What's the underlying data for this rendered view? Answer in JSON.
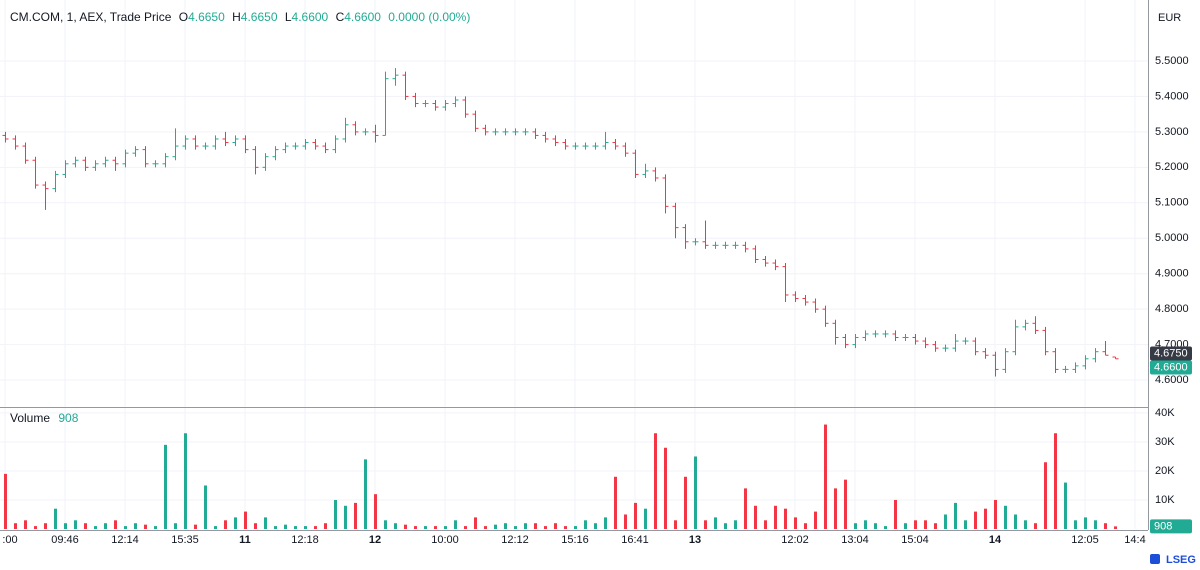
{
  "chart_data": {
    "type": "ohlc",
    "header": {
      "title": "CM.COM, 1, AEX, Trade Price",
      "open_label": "O",
      "open": "4.6650",
      "high_label": "H",
      "high": "4.6650",
      "low_label": "L",
      "low": "4.6600",
      "close_label": "C",
      "close": "4.6600",
      "change": "0.0000 (0.00%)"
    },
    "currency": "EUR",
    "volume_title": "Volume",
    "brand": "LSEG",
    "up_color": "#22ab94",
    "down_color": "#f23645",
    "grid": true,
    "categories": [
      ":00",
      null,
      null,
      null,
      null,
      null,
      "09:46",
      null,
      null,
      null,
      null,
      null,
      "12:14",
      null,
      null,
      null,
      null,
      null,
      "15:35",
      null,
      null,
      null,
      null,
      null,
      "11",
      null,
      null,
      null,
      null,
      null,
      "12:18",
      null,
      null,
      null,
      null,
      null,
      null,
      "12",
      null,
      null,
      null,
      null,
      null,
      null,
      "10:00",
      null,
      null,
      null,
      null,
      null,
      null,
      "12:12",
      null,
      null,
      null,
      null,
      null,
      "15:16",
      null,
      null,
      null,
      null,
      null,
      "16:41",
      null,
      null,
      null,
      null,
      null,
      "13",
      null,
      null,
      null,
      null,
      null,
      null,
      null,
      null,
      null,
      "12:02",
      null,
      null,
      null,
      null,
      null,
      "13:04",
      null,
      null,
      null,
      null,
      null,
      "15:04",
      null,
      null,
      null,
      null,
      null,
      null,
      null,
      "14",
      null,
      null,
      null,
      null,
      null,
      null,
      null,
      null,
      "12:05",
      null,
      null,
      null,
      null,
      "14:4"
    ],
    "open": [
      5.29,
      5.28,
      5.26,
      5.22,
      5.15,
      5.14,
      5.18,
      5.21,
      5.22,
      5.2,
      5.21,
      5.22,
      5.21,
      5.24,
      5.25,
      5.21,
      5.21,
      5.23,
      5.26,
      5.28,
      5.26,
      5.26,
      5.28,
      5.27,
      5.28,
      5.25,
      5.2,
      5.23,
      5.25,
      5.26,
      5.26,
      5.27,
      5.26,
      5.25,
      5.28,
      5.32,
      5.3,
      5.3,
      5.29,
      5.45,
      5.46,
      5.4,
      5.38,
      5.38,
      5.37,
      5.38,
      5.39,
      5.35,
      5.31,
      5.3,
      5.3,
      5.3,
      5.3,
      5.3,
      5.29,
      5.28,
      5.27,
      5.26,
      5.26,
      5.26,
      5.26,
      5.27,
      5.26,
      5.24,
      5.18,
      5.19,
      5.17,
      5.09,
      5.03,
      4.99,
      4.99,
      4.98,
      4.98,
      4.98,
      4.98,
      4.97,
      4.94,
      4.93,
      4.92,
      4.84,
      4.83,
      4.82,
      4.8,
      4.76,
      4.72,
      4.7,
      4.72,
      4.73,
      4.73,
      4.73,
      4.72,
      4.72,
      4.71,
      4.7,
      4.69,
      4.69,
      4.71,
      4.71,
      4.68,
      4.67,
      4.63,
      4.68,
      4.75,
      4.76,
      4.74,
      4.68,
      4.63,
      4.63,
      4.64,
      4.66,
      4.68,
      4.665,
      null,
      null
    ],
    "high": [
      5.3,
      5.29,
      5.27,
      5.23,
      5.16,
      5.19,
      5.22,
      5.23,
      5.23,
      5.22,
      5.23,
      5.23,
      5.25,
      5.26,
      5.26,
      5.22,
      5.24,
      5.31,
      5.29,
      5.29,
      5.27,
      5.29,
      5.3,
      5.29,
      5.29,
      5.26,
      5.24,
      5.26,
      5.27,
      5.27,
      5.28,
      5.28,
      5.27,
      5.29,
      5.34,
      5.33,
      5.31,
      5.32,
      5.47,
      5.48,
      5.47,
      5.41,
      5.39,
      5.39,
      5.39,
      5.4,
      5.4,
      5.36,
      5.32,
      5.31,
      5.31,
      5.31,
      5.31,
      5.31,
      5.3,
      5.29,
      5.28,
      5.27,
      5.27,
      5.27,
      5.3,
      5.28,
      5.27,
      5.25,
      5.21,
      5.2,
      5.18,
      5.1,
      5.04,
      5.0,
      5.05,
      4.99,
      4.99,
      4.99,
      4.99,
      4.98,
      4.95,
      4.94,
      4.93,
      4.85,
      4.84,
      4.83,
      4.81,
      4.77,
      4.73,
      4.73,
      4.74,
      4.74,
      4.74,
      4.74,
      4.73,
      4.73,
      4.72,
      4.71,
      4.7,
      4.73,
      4.72,
      4.72,
      4.69,
      4.68,
      4.69,
      4.77,
      4.77,
      4.78,
      4.75,
      4.69,
      4.64,
      4.65,
      4.67,
      4.69,
      4.71,
      4.665,
      null,
      null
    ],
    "low": [
      5.27,
      5.25,
      5.21,
      5.14,
      5.08,
      5.13,
      5.17,
      5.2,
      5.19,
      5.19,
      5.2,
      5.19,
      5.2,
      5.23,
      5.2,
      5.2,
      5.2,
      5.22,
      5.25,
      5.25,
      5.25,
      5.25,
      5.26,
      5.26,
      5.24,
      5.18,
      5.19,
      5.22,
      5.24,
      5.25,
      5.25,
      5.25,
      5.24,
      5.24,
      5.27,
      5.29,
      5.29,
      5.27,
      5.29,
      5.43,
      5.39,
      5.37,
      5.37,
      5.36,
      5.36,
      5.37,
      5.34,
      5.3,
      5.29,
      5.29,
      5.29,
      5.29,
      5.29,
      5.28,
      5.27,
      5.26,
      5.25,
      5.25,
      5.25,
      5.25,
      5.25,
      5.25,
      5.23,
      5.17,
      5.17,
      5.16,
      5.07,
      5.0,
      4.97,
      4.98,
      4.97,
      4.97,
      4.97,
      4.97,
      4.96,
      4.93,
      4.92,
      4.91,
      4.82,
      4.82,
      4.81,
      4.79,
      4.75,
      4.7,
      4.69,
      4.69,
      4.71,
      4.72,
      4.72,
      4.71,
      4.71,
      4.7,
      4.69,
      4.68,
      4.68,
      4.68,
      4.7,
      4.67,
      4.66,
      4.61,
      4.62,
      4.67,
      4.74,
      4.73,
      4.67,
      4.62,
      4.62,
      4.62,
      4.63,
      4.65,
      4.67,
      4.66,
      null,
      null
    ],
    "close": [
      5.28,
      5.26,
      5.22,
      5.15,
      5.14,
      5.18,
      5.21,
      5.22,
      5.2,
      5.21,
      5.22,
      5.21,
      5.24,
      5.25,
      5.21,
      5.21,
      5.23,
      5.26,
      5.28,
      5.26,
      5.26,
      5.28,
      5.27,
      5.28,
      5.25,
      5.2,
      5.23,
      5.25,
      5.26,
      5.26,
      5.27,
      5.26,
      5.25,
      5.28,
      5.32,
      5.3,
      5.3,
      5.29,
      5.45,
      5.46,
      5.4,
      5.38,
      5.38,
      5.37,
      5.38,
      5.39,
      5.35,
      5.31,
      5.3,
      5.3,
      5.3,
      5.3,
      5.3,
      5.29,
      5.28,
      5.27,
      5.26,
      5.26,
      5.26,
      5.26,
      5.27,
      5.26,
      5.24,
      5.18,
      5.19,
      5.17,
      5.09,
      5.03,
      4.99,
      4.99,
      4.98,
      4.98,
      4.98,
      4.98,
      4.97,
      4.94,
      4.93,
      4.92,
      4.84,
      4.83,
      4.82,
      4.8,
      4.76,
      4.72,
      4.7,
      4.72,
      4.73,
      4.73,
      4.73,
      4.72,
      4.72,
      4.71,
      4.7,
      4.69,
      4.69,
      4.71,
      4.71,
      4.68,
      4.67,
      4.63,
      4.68,
      4.75,
      4.76,
      4.74,
      4.68,
      4.63,
      4.63,
      4.64,
      4.66,
      4.68,
      4.67,
      4.66,
      null,
      null
    ],
    "volume": [
      19000,
      2000,
      3000,
      1000,
      2000,
      7000,
      2000,
      3000,
      2000,
      1000,
      2000,
      3000,
      1000,
      2000,
      1500,
      1000,
      29000,
      2000,
      33000,
      1500,
      15000,
      1000,
      3000,
      4000,
      6000,
      2000,
      4000,
      1000,
      1500,
      1000,
      1000,
      1000,
      2000,
      10000,
      8000,
      9000,
      24000,
      12000,
      3000,
      2000,
      1500,
      1000,
      1000,
      1000,
      1000,
      3000,
      1000,
      4000,
      1000,
      1500,
      2000,
      1000,
      2000,
      2000,
      1000,
      2000,
      1000,
      1000,
      3000,
      2000,
      4000,
      18000,
      5000,
      9000,
      7000,
      33000,
      28000,
      3000,
      18000,
      25000,
      3000,
      4000,
      2000,
      3000,
      14000,
      8000,
      3000,
      8000,
      7000,
      4000,
      2000,
      6000,
      36000,
      14000,
      17000,
      2000,
      3000,
      2000,
      1000,
      10000,
      2000,
      3000,
      3000,
      2000,
      5000,
      9000,
      3000,
      6000,
      7000,
      10000,
      8000,
      5000,
      3000,
      2000,
      23000,
      33000,
      16000,
      3000,
      4000,
      3000,
      2000,
      908,
      null,
      null
    ],
    "ylim": [
      4.524,
      5.672
    ],
    "yticks": [
      {
        "value": 4.6,
        "label": "4.6000"
      },
      {
        "value": 4.7,
        "label": "4.7000"
      },
      {
        "value": 4.8,
        "label": "4.8000"
      },
      {
        "value": 4.9,
        "label": "4.9000"
      },
      {
        "value": 5.0,
        "label": "5.0000"
      },
      {
        "value": 5.1,
        "label": "5.1000"
      },
      {
        "value": 5.2,
        "label": "5.2000"
      },
      {
        "value": 5.3,
        "label": "5.3000"
      },
      {
        "value": 5.4,
        "label": "5.4000"
      },
      {
        "value": 5.5,
        "label": "5.5000"
      }
    ],
    "y2lim": [
      0,
      41700
    ],
    "y2ticks": [
      {
        "value": 10000,
        "label": "10K"
      },
      {
        "value": 20000,
        "label": "20K"
      },
      {
        "value": 30000,
        "label": "30K"
      },
      {
        "value": 40000,
        "label": "40K"
      }
    ],
    "price_tags": [
      {
        "value": 4.675,
        "label": "4.6750",
        "color": "#363a45"
      },
      {
        "value": 4.66,
        "label": "4.6600",
        "color": "#22ab94"
      }
    ]
  }
}
